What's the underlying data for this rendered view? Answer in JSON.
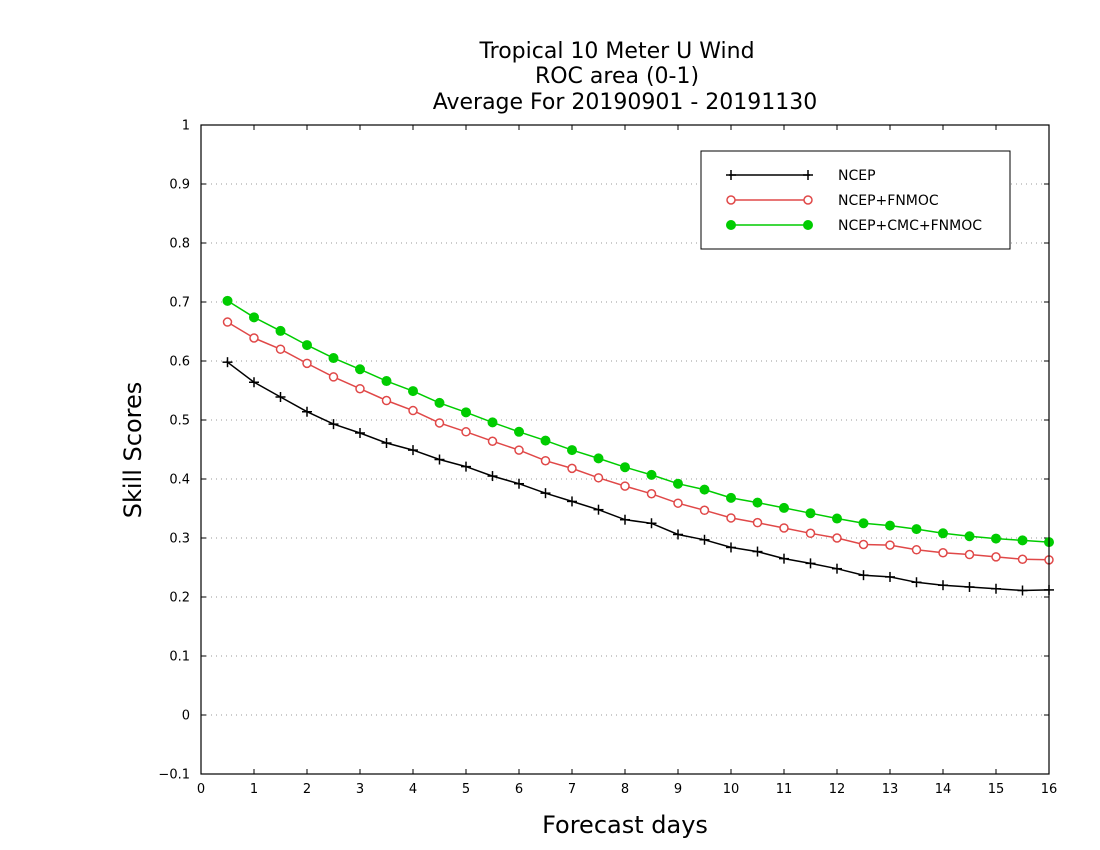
{
  "chart_data": {
    "type": "line",
    "title": [
      "Tropical 10 Meter U Wind",
      "ROC area (0-1)",
      "Average For 20190901 - 20191130"
    ],
    "xlabel": "Forecast days",
    "ylabel": "Skill Scores",
    "xlim": [
      0,
      16
    ],
    "ylim": [
      -0.1,
      1
    ],
    "xticks": [
      "0",
      "1",
      "2",
      "3",
      "4",
      "5",
      "6",
      "7",
      "8",
      "9",
      "10",
      "11",
      "12",
      "13",
      "14",
      "15",
      "16"
    ],
    "yticks": [
      "−0.1",
      "0",
      "0.1",
      "0.2",
      "0.3",
      "0.4",
      "0.5",
      "0.6",
      "0.7",
      "0.8",
      "0.9",
      "1"
    ],
    "grid": "horizontal dotted",
    "legend_position": "top-right",
    "x": [
      0.5,
      1,
      1.5,
      2,
      2.5,
      3,
      3.5,
      4,
      4.5,
      5,
      5.5,
      6,
      6.5,
      7,
      7.5,
      8,
      8.5,
      9,
      9.5,
      10,
      10.5,
      11,
      11.5,
      12,
      12.5,
      13,
      13.5,
      14,
      14.5,
      15,
      15.5,
      16
    ],
    "series": [
      {
        "name": "NCEP",
        "color": "#000000",
        "marker": "plus",
        "values": [
          0.598,
          0.564,
          0.539,
          0.514,
          0.493,
          0.478,
          0.461,
          0.449,
          0.433,
          0.421,
          0.405,
          0.392,
          0.376,
          0.362,
          0.348,
          0.331,
          0.325,
          0.306,
          0.297,
          0.284,
          0.277,
          0.265,
          0.257,
          0.248,
          0.237,
          0.234,
          0.225,
          0.22,
          0.217,
          0.214,
          0.211,
          0.212
        ]
      },
      {
        "name": "NCEP+FNMOC",
        "color": "#e04848",
        "marker": "open-circle",
        "values": [
          0.666,
          0.639,
          0.62,
          0.596,
          0.573,
          0.553,
          0.533,
          0.516,
          0.495,
          0.48,
          0.464,
          0.449,
          0.431,
          0.418,
          0.402,
          0.388,
          0.375,
          0.359,
          0.347,
          0.334,
          0.326,
          0.317,
          0.308,
          0.3,
          0.289,
          0.288,
          0.28,
          0.275,
          0.272,
          0.268,
          0.264,
          0.263
        ]
      },
      {
        "name": "NCEP+CMC+FNMOC",
        "color": "#00cc00",
        "marker": "filled-circle",
        "values": [
          0.702,
          0.674,
          0.651,
          0.627,
          0.605,
          0.586,
          0.566,
          0.549,
          0.529,
          0.513,
          0.496,
          0.48,
          0.465,
          0.449,
          0.435,
          0.42,
          0.407,
          0.392,
          0.382,
          0.368,
          0.36,
          0.351,
          0.342,
          0.333,
          0.325,
          0.321,
          0.315,
          0.308,
          0.303,
          0.299,
          0.296,
          0.293
        ]
      }
    ]
  }
}
